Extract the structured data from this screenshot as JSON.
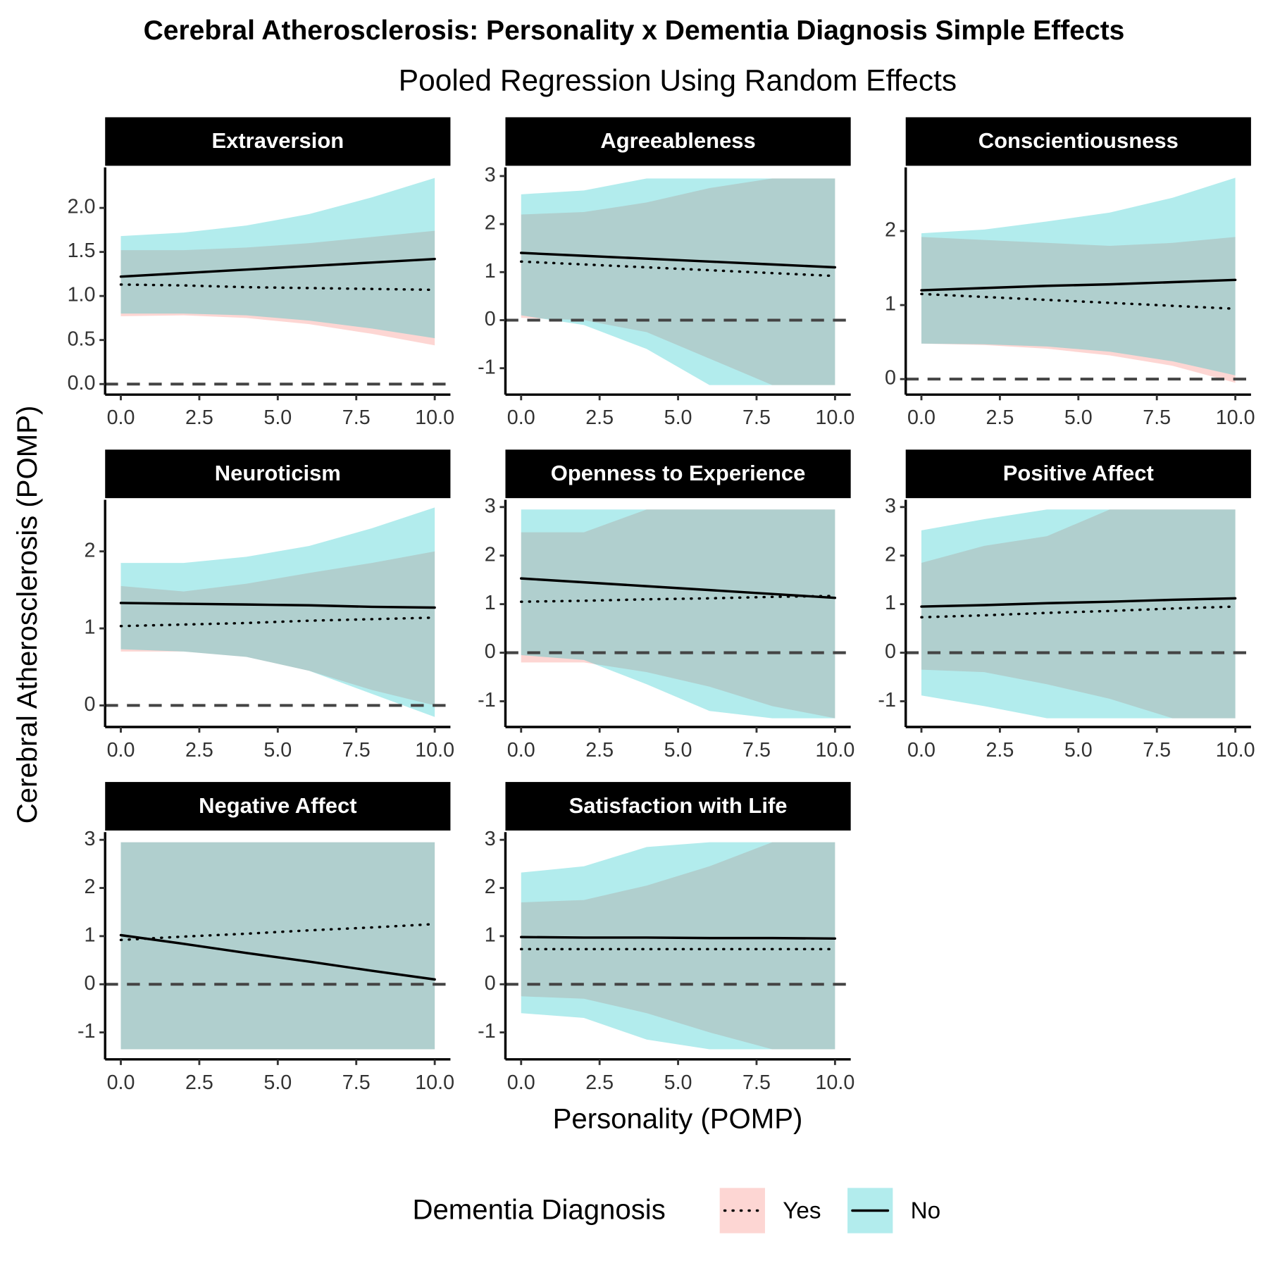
{
  "title": "Cerebral Atherosclerosis: Personality x Dementia Diagnosis Simple Effects",
  "subtitle": "Pooled Regression Using Random Effects",
  "xlabel": "Personality (POMP)",
  "ylabel": "Cerebral Atherosclerosis (POMP)",
  "legend_title": "Dementia Diagnosis",
  "chart_data": [
    {
      "type": "ribbon_line",
      "title": "Extraversion",
      "x": [
        0,
        2,
        4,
        6,
        8,
        10
      ],
      "xlim": [
        -0.5,
        10.5
      ],
      "xticks": [
        {
          "value": 0,
          "label": "0.0"
        },
        2.5,
        {
          "value": 5,
          "label": "5.0"
        },
        7.5,
        {
          "value": 10,
          "label": "10.0"
        }
      ],
      "ylim": [
        -0.12,
        2.46
      ],
      "yticks": [
        {
          "value": 0,
          "label": "0.0"
        },
        0.5,
        {
          "value": 1,
          "label": "1.0"
        },
        1.5,
        {
          "value": 2,
          "label": "2.0"
        }
      ],
      "hline": 0,
      "series": [
        {
          "name": "Yes",
          "color": "#F8766D",
          "line_style": "dotted",
          "values": [
            1.13,
            1.12,
            1.1,
            1.09,
            1.08,
            1.07
          ],
          "lower": [
            0.77,
            0.78,
            0.75,
            0.68,
            0.57,
            0.44
          ],
          "upper": [
            1.52,
            1.52,
            1.55,
            1.6,
            1.67,
            1.74
          ]
        },
        {
          "name": "No",
          "color": "#00BFC4",
          "line_style": "solid",
          "values": [
            1.22,
            1.26,
            1.3,
            1.34,
            1.38,
            1.42
          ],
          "lower": [
            0.8,
            0.8,
            0.78,
            0.72,
            0.63,
            0.52
          ],
          "upper": [
            1.68,
            1.72,
            1.8,
            1.93,
            2.12,
            2.34
          ]
        }
      ]
    },
    {
      "type": "ribbon_line",
      "title": "Agreeableness",
      "x": [
        0,
        2,
        4,
        6,
        8,
        10
      ],
      "xlim": [
        -0.5,
        10.5
      ],
      "xticks": [
        {
          "value": 0,
          "label": "0.0"
        },
        2.5,
        {
          "value": 5,
          "label": "5.0"
        },
        7.5,
        {
          "value": 10,
          "label": "10.0"
        }
      ],
      "ylim": [
        -1.55,
        3.18
      ],
      "yticks": [
        -1,
        0,
        1,
        2,
        3
      ],
      "hline": 0,
      "series": [
        {
          "name": "Yes",
          "color": "#F8766D",
          "line_style": "dotted",
          "values": [
            1.22,
            1.16,
            1.1,
            1.04,
            0.98,
            0.92
          ],
          "lower": [
            0.05,
            0.0,
            -0.25,
            -0.8,
            -1.35,
            -1.35
          ],
          "upper": [
            2.2,
            2.25,
            2.45,
            2.75,
            2.95,
            2.95
          ]
        },
        {
          "name": "No",
          "color": "#00BFC4",
          "line_style": "solid",
          "values": [
            1.4,
            1.34,
            1.28,
            1.22,
            1.16,
            1.1
          ],
          "lower": [
            0.1,
            -0.1,
            -0.6,
            -1.35,
            -1.35,
            -1.35
          ],
          "upper": [
            2.62,
            2.7,
            2.95,
            2.95,
            2.95,
            2.95
          ]
        }
      ]
    },
    {
      "type": "ribbon_line",
      "title": "Conscientiousness",
      "x": [
        0,
        2,
        4,
        6,
        8,
        10
      ],
      "xlim": [
        -0.5,
        10.5
      ],
      "xticks": [
        {
          "value": 0,
          "label": "0.0"
        },
        2.5,
        {
          "value": 5,
          "label": "5.0"
        },
        7.5,
        {
          "value": 10,
          "label": "10.0"
        }
      ],
      "ylim": [
        -0.21,
        2.86
      ],
      "yticks": [
        0,
        1,
        2
      ],
      "hline": 0,
      "series": [
        {
          "name": "Yes",
          "color": "#F8766D",
          "line_style": "dotted",
          "values": [
            1.15,
            1.11,
            1.07,
            1.03,
            0.99,
            0.95
          ],
          "lower": [
            0.48,
            0.46,
            0.41,
            0.32,
            0.18,
            -0.05
          ],
          "upper": [
            1.92,
            1.88,
            1.84,
            1.8,
            1.84,
            1.92
          ]
        },
        {
          "name": "No",
          "color": "#00BFC4",
          "line_style": "solid",
          "values": [
            1.2,
            1.23,
            1.26,
            1.28,
            1.31,
            1.34
          ],
          "lower": [
            0.48,
            0.47,
            0.44,
            0.37,
            0.24,
            0.05
          ],
          "upper": [
            1.97,
            2.02,
            2.13,
            2.25,
            2.45,
            2.72
          ]
        }
      ]
    },
    {
      "type": "ribbon_line",
      "title": "Neuroticism",
      "x": [
        0,
        2,
        4,
        6,
        8,
        10
      ],
      "xlim": [
        -0.5,
        10.5
      ],
      "xticks": [
        {
          "value": 0,
          "label": "0.0"
        },
        2.5,
        {
          "value": 5,
          "label": "5.0"
        },
        7.5,
        {
          "value": 10,
          "label": "10.0"
        }
      ],
      "ylim": [
        -0.28,
        2.67
      ],
      "yticks": [
        0,
        1,
        2
      ],
      "hline": 0,
      "series": [
        {
          "name": "Yes",
          "color": "#F8766D",
          "line_style": "dotted",
          "values": [
            1.03,
            1.05,
            1.07,
            1.1,
            1.12,
            1.14
          ],
          "lower": [
            0.7,
            0.7,
            0.63,
            0.45,
            0.2,
            0.0
          ],
          "upper": [
            1.55,
            1.48,
            1.58,
            1.72,
            1.85,
            2.0
          ]
        },
        {
          "name": "No",
          "color": "#00BFC4",
          "line_style": "solid",
          "values": [
            1.33,
            1.32,
            1.31,
            1.3,
            1.28,
            1.27
          ],
          "lower": [
            0.73,
            0.7,
            0.63,
            0.45,
            0.15,
            -0.15
          ],
          "upper": [
            1.85,
            1.85,
            1.93,
            2.07,
            2.3,
            2.57
          ]
        }
      ]
    },
    {
      "type": "ribbon_line",
      "title": "Openness to Experience",
      "x": [
        0,
        2,
        4,
        6,
        8,
        10
      ],
      "xlim": [
        -0.5,
        10.5
      ],
      "xticks": [
        {
          "value": 0,
          "label": "0.0"
        },
        2.5,
        {
          "value": 5,
          "label": "5.0"
        },
        7.5,
        {
          "value": 10,
          "label": "10.0"
        }
      ],
      "ylim": [
        -1.53,
        3.15
      ],
      "yticks": [
        -1,
        0,
        1,
        2,
        3
      ],
      "hline": 0,
      "series": [
        {
          "name": "Yes",
          "color": "#F8766D",
          "line_style": "dotted",
          "values": [
            1.05,
            1.07,
            1.1,
            1.12,
            1.15,
            1.17
          ],
          "lower": [
            -0.2,
            -0.2,
            -0.4,
            -0.7,
            -1.1,
            -1.35
          ],
          "upper": [
            2.48,
            2.48,
            2.95,
            2.95,
            2.95,
            2.95
          ]
        },
        {
          "name": "No",
          "color": "#00BFC4",
          "line_style": "solid",
          "values": [
            1.53,
            1.45,
            1.37,
            1.29,
            1.21,
            1.13
          ],
          "lower": [
            -0.05,
            -0.15,
            -0.65,
            -1.2,
            -1.35,
            -1.35
          ],
          "upper": [
            2.95,
            2.95,
            2.95,
            2.95,
            2.95,
            2.95
          ]
        }
      ]
    },
    {
      "type": "ribbon_line",
      "title": "Positive Affect",
      "x": [
        0,
        2,
        4,
        6,
        8,
        10
      ],
      "xlim": [
        -0.5,
        10.5
      ],
      "xticks": [
        {
          "value": 0,
          "label": "0.0"
        },
        2.5,
        {
          "value": 5,
          "label": "5.0"
        },
        7.5,
        {
          "value": 10,
          "label": "10.0"
        }
      ],
      "ylim": [
        -1.53,
        3.15
      ],
      "yticks": [
        -1,
        0,
        1,
        2,
        3
      ],
      "hline": 0,
      "series": [
        {
          "name": "Yes",
          "color": "#F8766D",
          "line_style": "dotted",
          "values": [
            0.73,
            0.77,
            0.82,
            0.86,
            0.91,
            0.95
          ],
          "lower": [
            -0.35,
            -0.4,
            -0.65,
            -0.95,
            -1.35,
            -1.35
          ],
          "upper": [
            1.85,
            2.2,
            2.4,
            2.95,
            2.95,
            2.95
          ]
        },
        {
          "name": "No",
          "color": "#00BFC4",
          "line_style": "solid",
          "values": [
            0.95,
            0.98,
            1.02,
            1.05,
            1.09,
            1.12
          ],
          "lower": [
            -0.88,
            -1.1,
            -1.35,
            -1.35,
            -1.35,
            -1.35
          ],
          "upper": [
            2.52,
            2.75,
            2.95,
            2.95,
            2.95,
            2.95
          ]
        }
      ]
    },
    {
      "type": "ribbon_line",
      "title": "Negative Affect",
      "x": [
        0,
        2,
        4,
        6,
        8,
        10
      ],
      "xlim": [
        -0.5,
        10.5
      ],
      "xticks": [
        {
          "value": 0,
          "label": "0.0"
        },
        2.5,
        {
          "value": 5,
          "label": "5.0"
        },
        7.5,
        {
          "value": 10,
          "label": "10.0"
        }
      ],
      "ylim": [
        -1.56,
        3.16
      ],
      "yticks": [
        -1,
        0,
        1,
        2,
        3
      ],
      "hline": 0,
      "series": [
        {
          "name": "Yes",
          "color": "#F8766D",
          "line_style": "dotted",
          "values": [
            0.92,
            0.99,
            1.05,
            1.12,
            1.18,
            1.25
          ],
          "lower": [
            -1.35,
            -1.35,
            -1.35,
            -1.35,
            -1.35,
            -1.35
          ],
          "upper": [
            2.95,
            2.95,
            2.95,
            2.95,
            2.95,
            2.95
          ]
        },
        {
          "name": "No",
          "color": "#00BFC4",
          "line_style": "solid",
          "values": [
            1.02,
            0.84,
            0.65,
            0.47,
            0.28,
            0.1
          ],
          "lower": [
            -1.35,
            -1.35,
            -1.35,
            -1.35,
            -1.35,
            -1.35
          ],
          "upper": [
            2.95,
            2.95,
            2.95,
            2.95,
            2.95,
            2.95
          ]
        }
      ]
    },
    {
      "type": "ribbon_line",
      "title": "Satisfaction with Life",
      "x": [
        0,
        2,
        4,
        6,
        8,
        10
      ],
      "xlim": [
        -0.5,
        10.5
      ],
      "xticks": [
        {
          "value": 0,
          "label": "0.0"
        },
        2.5,
        {
          "value": 5,
          "label": "5.0"
        },
        7.5,
        {
          "value": 10,
          "label": "10.0"
        }
      ],
      "ylim": [
        -1.56,
        3.16
      ],
      "yticks": [
        -1,
        0,
        1,
        2,
        3
      ],
      "hline": 0,
      "series": [
        {
          "name": "Yes",
          "color": "#F8766D",
          "line_style": "dotted",
          "values": [
            0.73,
            0.73,
            0.73,
            0.73,
            0.73,
            0.73
          ],
          "lower": [
            -0.25,
            -0.3,
            -0.6,
            -1.0,
            -1.35,
            -1.35
          ],
          "upper": [
            1.7,
            1.75,
            2.05,
            2.45,
            2.95,
            2.95
          ]
        },
        {
          "name": "No",
          "color": "#00BFC4",
          "line_style": "solid",
          "values": [
            0.98,
            0.97,
            0.97,
            0.96,
            0.96,
            0.95
          ],
          "lower": [
            -0.6,
            -0.7,
            -1.15,
            -1.35,
            -1.35,
            -1.35
          ],
          "upper": [
            2.32,
            2.45,
            2.85,
            2.95,
            2.95,
            2.95
          ]
        }
      ]
    }
  ]
}
